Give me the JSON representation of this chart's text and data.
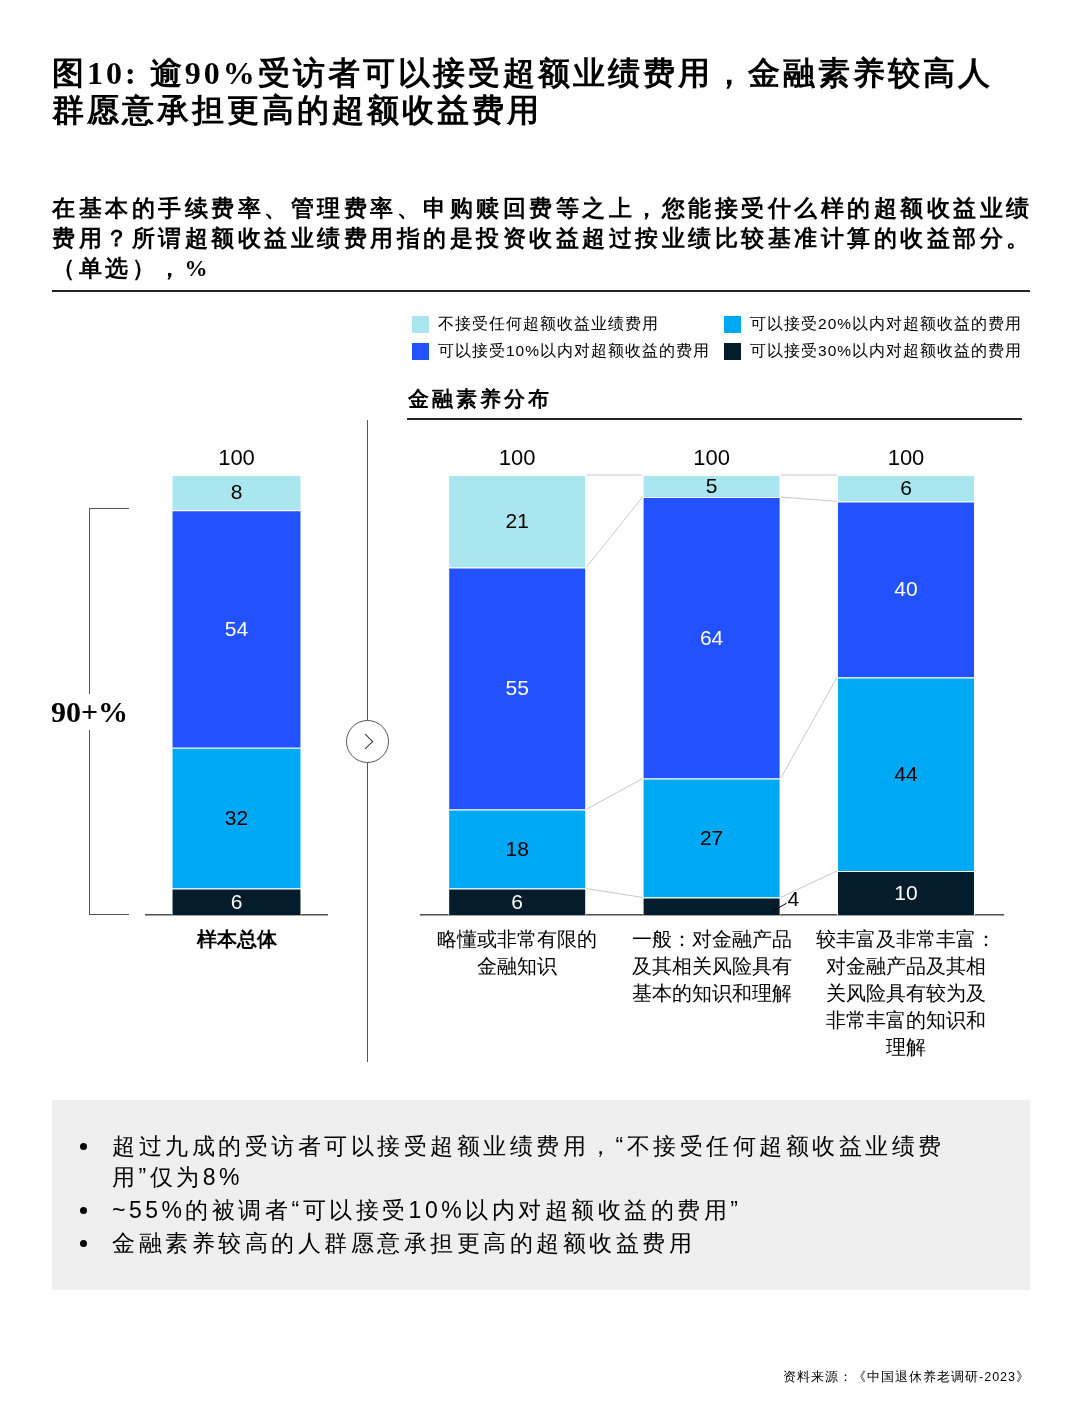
{
  "chart_data": [
    {
      "type": "bar",
      "title": "图10: 逾90%受访者可以接受超额业绩费用，金融素养较高人群愿意承担更高的超额收益费用",
      "subtitle": "在基本的手续费率、管理费率、申购赎回费等之上，您能接受什么样的超额收益业绩费用？所谓超额收益业绩费用指的是投资收益超过按业绩比较基准计算的收益部分。（单选），%",
      "categories": [
        "样本总体"
      ],
      "stacked": true,
      "series": [
        {
          "color": "#051c2c",
          "values": [
            6
          ]
        },
        {
          "color": "#00a9f4",
          "values": [
            32
          ]
        },
        {
          "color": "#2251ff",
          "values": [
            54
          ]
        },
        {
          "color": "#aae6f0",
          "values": [
            8
          ]
        }
      ],
      "data_labels": true,
      "totals": [
        "100"
      ],
      "tick_labels": "x",
      "annotations": [
        "90+%"
      ]
    },
    {
      "type": "bar",
      "title": "金融素养分布",
      "categories": [
        "略懂或非常有限的金融知识",
        "一般：对金融产品及其相关风险具有基本的知识和理解",
        "较丰富及非常丰富：对金融产品及其相关风险具有较为及非常丰富的知识和理解"
      ],
      "stacked": true,
      "legend": "top",
      "series": [
        {
          "name": "可以接受30%以内对超额收益的费用",
          "color": "#051c2c",
          "values": [
            6,
            4,
            10
          ]
        },
        {
          "name": "可以接受20%以内对超额收益的费用",
          "color": "#00a9f4",
          "values": [
            18,
            27,
            44
          ]
        },
        {
          "name": "可以接受10%以内对超额收益的费用",
          "color": "#2251ff",
          "values": [
            55,
            64,
            40
          ]
        },
        {
          "name": "不接受任何超额收益业绩费用",
          "color": "#aae6f0",
          "values": [
            21,
            5,
            6
          ]
        }
      ],
      "data_labels": true,
      "totals": [
        "100",
        "100",
        "100"
      ],
      "tick_labels": "x",
      "annotations": [
        "超过九成的受访者可以接受超额业绩费用，“不接受任何超额收益业绩费用”仅为8%",
        "~55%的被调者“可以接受10%以内对超额收益的费用”",
        "金融素养较高的人群愿意承担更高的超额收益费用",
        "资料来源：《中国退休养老调研-2023》"
      ]
    }
  ]
}
